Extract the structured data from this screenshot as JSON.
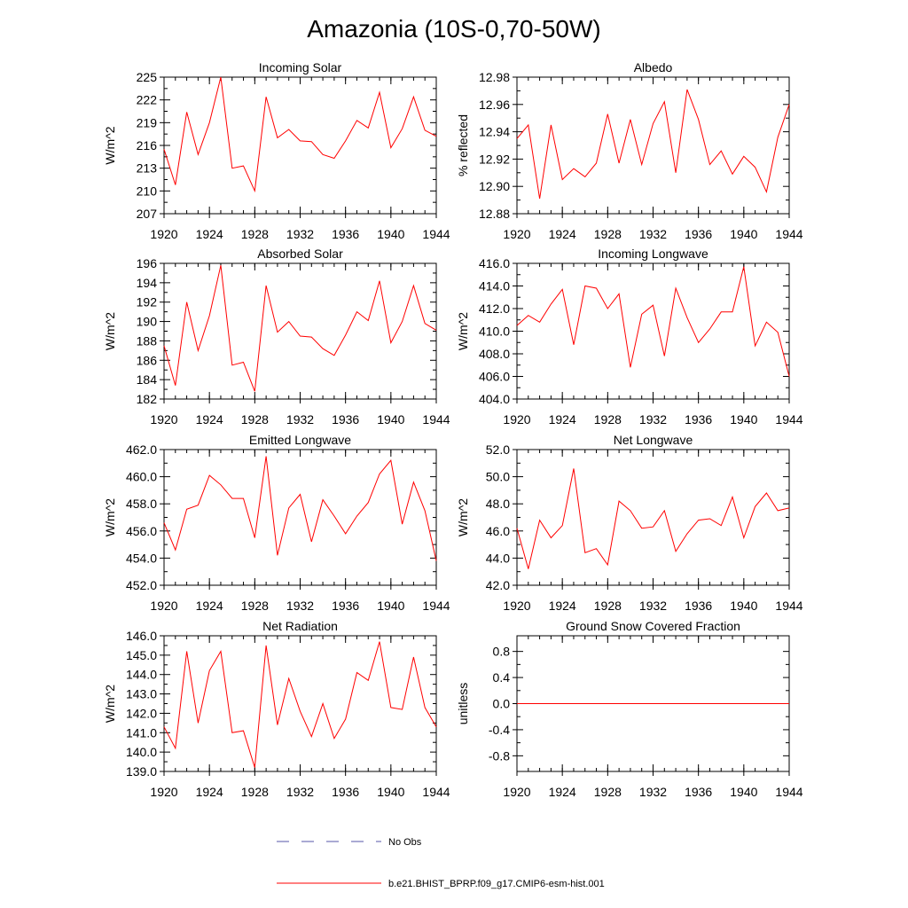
{
  "figure": {
    "title": "Amazonia (10S-0,70-50W)",
    "legend": {
      "obs_label": "No Obs",
      "model_label": "b.e21.BHIST_BPRP.f09_g17.CMIP6-esm-hist.001"
    }
  },
  "colors": {
    "model": "#ff0000",
    "obs": "#5555aa",
    "axis": "#000000"
  },
  "chart_data": [
    {
      "type": "line",
      "title": "Incoming Solar",
      "ylabel": "W/m^2",
      "xlabel": "",
      "xlim": [
        1920,
        1944
      ],
      "xticks": [
        1920,
        1924,
        1928,
        1932,
        1936,
        1940,
        1944
      ],
      "xtick_labels": [
        "1920",
        "1924",
        "1928",
        "1932",
        "1936",
        "1940",
        "1944"
      ],
      "ylim": [
        207,
        225
      ],
      "yticks": [
        207,
        210,
        213,
        216,
        219,
        222,
        225
      ],
      "ytick_labels": [
        "207",
        "210",
        "213",
        "216",
        "219",
        "222",
        "225"
      ],
      "series": [
        {
          "name": "b.e21.BHIST_BPRP.f09_g17.CMIP6-esm-hist.001",
          "x": [
            1920,
            1921,
            1922,
            1923,
            1924,
            1925,
            1926,
            1927,
            1928,
            1929,
            1930,
            1931,
            1932,
            1933,
            1934,
            1935,
            1936,
            1937,
            1938,
            1939,
            1940,
            1941,
            1942,
            1943,
            1944
          ],
          "values": [
            215.5,
            210.8,
            220.4,
            214.8,
            219.0,
            225.0,
            213.0,
            213.3,
            210.0,
            222.4,
            217.0,
            218.1,
            216.6,
            216.5,
            214.8,
            214.3,
            216.6,
            219.3,
            218.3,
            223.0,
            215.7,
            218.2,
            222.4,
            218.0,
            217.2
          ]
        }
      ]
    },
    {
      "type": "line",
      "title": "Albedo",
      "ylabel": "% reflected",
      "xlabel": "",
      "xlim": [
        1920,
        1944
      ],
      "xticks": [
        1920,
        1924,
        1928,
        1932,
        1936,
        1940,
        1944
      ],
      "xtick_labels": [
        "1920",
        "1924",
        "1928",
        "1932",
        "1936",
        "1940",
        "1944"
      ],
      "ylim": [
        12.88,
        12.98
      ],
      "yticks": [
        12.88,
        12.9,
        12.92,
        12.94,
        12.96,
        12.98
      ],
      "ytick_labels": [
        "12.88",
        "12.90",
        "12.92",
        "12.94",
        "12.96",
        "12.98"
      ],
      "series": [
        {
          "name": "b.e21.BHIST_BPRP.f09_g17.CMIP6-esm-hist.001",
          "x": [
            1920,
            1921,
            1922,
            1923,
            1924,
            1925,
            1926,
            1927,
            1928,
            1929,
            1930,
            1931,
            1932,
            1933,
            1934,
            1935,
            1936,
            1937,
            1938,
            1939,
            1940,
            1941,
            1942,
            1943,
            1944
          ],
          "values": [
            12.935,
            12.945,
            12.891,
            12.945,
            12.905,
            12.913,
            12.907,
            12.917,
            12.953,
            12.917,
            12.949,
            12.916,
            12.946,
            12.962,
            12.91,
            12.971,
            12.949,
            12.916,
            12.926,
            12.909,
            12.922,
            12.914,
            12.896,
            12.936,
            12.96
          ]
        }
      ]
    },
    {
      "type": "line",
      "title": "Absorbed Solar",
      "ylabel": "W/m^2",
      "xlabel": "",
      "xlim": [
        1920,
        1944
      ],
      "xticks": [
        1920,
        1924,
        1928,
        1932,
        1936,
        1940,
        1944
      ],
      "xtick_labels": [
        "1920",
        "1924",
        "1928",
        "1932",
        "1936",
        "1940",
        "1944"
      ],
      "ylim": [
        182,
        196
      ],
      "yticks": [
        182,
        184,
        186,
        188,
        190,
        192,
        194,
        196
      ],
      "ytick_labels": [
        "182",
        "184",
        "186",
        "188",
        "190",
        "192",
        "194",
        "196"
      ],
      "series": [
        {
          "name": "b.e21.BHIST_BPRP.f09_g17.CMIP6-esm-hist.001",
          "x": [
            1920,
            1921,
            1922,
            1923,
            1924,
            1925,
            1926,
            1927,
            1928,
            1929,
            1930,
            1931,
            1932,
            1933,
            1934,
            1935,
            1936,
            1937,
            1938,
            1939,
            1940,
            1941,
            1942,
            1943,
            1944
          ],
          "values": [
            187.5,
            183.4,
            192.0,
            187.0,
            190.6,
            195.8,
            185.5,
            185.8,
            182.8,
            193.7,
            188.9,
            190.0,
            188.5,
            188.4,
            187.2,
            186.5,
            188.6,
            191.0,
            190.1,
            194.2,
            187.8,
            190.0,
            193.7,
            189.8,
            189.1
          ]
        }
      ]
    },
    {
      "type": "line",
      "title": "Incoming Longwave",
      "ylabel": "W/m^2",
      "xlabel": "",
      "xlim": [
        1920,
        1944
      ],
      "xticks": [
        1920,
        1924,
        1928,
        1932,
        1936,
        1940,
        1944
      ],
      "xtick_labels": [
        "1920",
        "1924",
        "1928",
        "1932",
        "1936",
        "1940",
        "1944"
      ],
      "ylim": [
        404,
        416
      ],
      "yticks": [
        404,
        406,
        408,
        410,
        412,
        414,
        416
      ],
      "ytick_labels": [
        "404.0",
        "406.0",
        "408.0",
        "410.0",
        "412.0",
        "414.0",
        "416.0"
      ],
      "series": [
        {
          "name": "b.e21.BHIST_BPRP.f09_g17.CMIP6-esm-hist.001",
          "x": [
            1920,
            1921,
            1922,
            1923,
            1924,
            1925,
            1926,
            1927,
            1928,
            1929,
            1930,
            1931,
            1932,
            1933,
            1934,
            1935,
            1936,
            1937,
            1938,
            1939,
            1940,
            1941,
            1942,
            1943,
            1944
          ],
          "values": [
            410.5,
            411.4,
            410.8,
            412.4,
            413.7,
            408.8,
            414.0,
            413.8,
            412.0,
            413.3,
            406.8,
            411.5,
            412.3,
            407.8,
            413.8,
            411.2,
            409.0,
            410.2,
            411.7,
            411.7,
            415.7,
            408.7,
            410.8,
            409.9,
            406.0
          ]
        }
      ]
    },
    {
      "type": "line",
      "title": "Emitted Longwave",
      "ylabel": "W/m^2",
      "xlabel": "",
      "xlim": [
        1920,
        1944
      ],
      "xticks": [
        1920,
        1924,
        1928,
        1932,
        1936,
        1940,
        1944
      ],
      "xtick_labels": [
        "1920",
        "1924",
        "1928",
        "1932",
        "1936",
        "1940",
        "1944"
      ],
      "ylim": [
        452,
        462
      ],
      "yticks": [
        452,
        454,
        456,
        458,
        460,
        462
      ],
      "ytick_labels": [
        "452.0",
        "454.0",
        "456.0",
        "458.0",
        "460.0",
        "462.0"
      ],
      "series": [
        {
          "name": "b.e21.BHIST_BPRP.f09_g17.CMIP6-esm-hist.001",
          "x": [
            1920,
            1921,
            1922,
            1923,
            1924,
            1925,
            1926,
            1927,
            1928,
            1929,
            1930,
            1931,
            1932,
            1933,
            1934,
            1935,
            1936,
            1937,
            1938,
            1939,
            1940,
            1941,
            1942,
            1943,
            1944
          ],
          "values": [
            456.6,
            454.6,
            457.6,
            457.9,
            460.1,
            459.4,
            458.4,
            458.4,
            455.5,
            461.5,
            454.2,
            457.7,
            458.7,
            455.2,
            458.3,
            457.1,
            455.8,
            457.1,
            458.1,
            460.2,
            461.2,
            456.5,
            459.6,
            457.5,
            453.8
          ]
        }
      ]
    },
    {
      "type": "line",
      "title": "Net Longwave",
      "ylabel": "W/m^2",
      "xlabel": "",
      "xlim": [
        1920,
        1944
      ],
      "xticks": [
        1920,
        1924,
        1928,
        1932,
        1936,
        1940,
        1944
      ],
      "xtick_labels": [
        "1920",
        "1924",
        "1928",
        "1932",
        "1936",
        "1940",
        "1944"
      ],
      "ylim": [
        42,
        52
      ],
      "yticks": [
        42,
        44,
        46,
        48,
        50,
        52
      ],
      "ytick_labels": [
        "42.0",
        "44.0",
        "46.0",
        "48.0",
        "50.0",
        "52.0"
      ],
      "series": [
        {
          "name": "b.e21.BHIST_BPRP.f09_g17.CMIP6-esm-hist.001",
          "x": [
            1920,
            1921,
            1922,
            1923,
            1924,
            1925,
            1926,
            1927,
            1928,
            1929,
            1930,
            1931,
            1932,
            1933,
            1934,
            1935,
            1936,
            1937,
            1938,
            1939,
            1940,
            1941,
            1942,
            1943,
            1944
          ],
          "values": [
            46.2,
            43.2,
            46.8,
            45.5,
            46.4,
            50.6,
            44.4,
            44.7,
            43.5,
            48.2,
            47.5,
            46.2,
            46.3,
            47.5,
            44.5,
            45.8,
            46.8,
            46.9,
            46.4,
            48.5,
            45.5,
            47.8,
            48.8,
            47.5,
            47.7
          ]
        }
      ]
    },
    {
      "type": "line",
      "title": "Net Radiation",
      "ylabel": "W/m^2",
      "xlabel": "",
      "xlim": [
        1920,
        1944
      ],
      "xticks": [
        1920,
        1924,
        1928,
        1932,
        1936,
        1940,
        1944
      ],
      "xtick_labels": [
        "1920",
        "1924",
        "1928",
        "1932",
        "1936",
        "1940",
        "1944"
      ],
      "ylim": [
        139,
        146
      ],
      "yticks": [
        139,
        140,
        141,
        142,
        143,
        144,
        145,
        146
      ],
      "ytick_labels": [
        "139.0",
        "140.0",
        "141.0",
        "142.0",
        "143.0",
        "144.0",
        "145.0",
        "146.0"
      ],
      "series": [
        {
          "name": "b.e21.BHIST_BPRP.f09_g17.CMIP6-esm-hist.001",
          "x": [
            1920,
            1921,
            1922,
            1923,
            1924,
            1925,
            1926,
            1927,
            1928,
            1929,
            1930,
            1931,
            1932,
            1933,
            1934,
            1935,
            1936,
            1937,
            1938,
            1939,
            1940,
            1941,
            1942,
            1943,
            1944
          ],
          "values": [
            141.3,
            140.2,
            145.2,
            141.5,
            144.2,
            145.2,
            141.0,
            141.1,
            139.2,
            145.5,
            141.4,
            143.8,
            142.1,
            140.8,
            142.5,
            140.7,
            141.7,
            144.1,
            143.7,
            145.7,
            142.3,
            142.2,
            144.9,
            142.3,
            141.3
          ]
        }
      ]
    },
    {
      "type": "line",
      "title": "Ground Snow Covered Fraction",
      "ylabel": "unitless",
      "xlabel": "",
      "xlim": [
        1920,
        1944
      ],
      "xticks": [
        1920,
        1924,
        1928,
        1932,
        1936,
        1940,
        1944
      ],
      "xtick_labels": [
        "1920",
        "1924",
        "1928",
        "1932",
        "1936",
        "1940",
        "1944"
      ],
      "ylim": [
        -1.04,
        1.04
      ],
      "yticks": [
        -0.8,
        -0.4,
        0.0,
        0.4,
        0.8
      ],
      "ytick_labels": [
        "-0.8",
        "-0.4",
        "0.0",
        "0.4",
        "0.8"
      ],
      "series": [
        {
          "name": "b.e21.BHIST_BPRP.f09_g17.CMIP6-esm-hist.001",
          "x": [
            1920,
            1921,
            1922,
            1923,
            1924,
            1925,
            1926,
            1927,
            1928,
            1929,
            1930,
            1931,
            1932,
            1933,
            1934,
            1935,
            1936,
            1937,
            1938,
            1939,
            1940,
            1941,
            1942,
            1943,
            1944
          ],
          "values": [
            0,
            0,
            0,
            0,
            0,
            0,
            0,
            0,
            0,
            0,
            0,
            0,
            0,
            0,
            0,
            0,
            0,
            0,
            0,
            0,
            0,
            0,
            0,
            0,
            0
          ]
        }
      ]
    }
  ]
}
